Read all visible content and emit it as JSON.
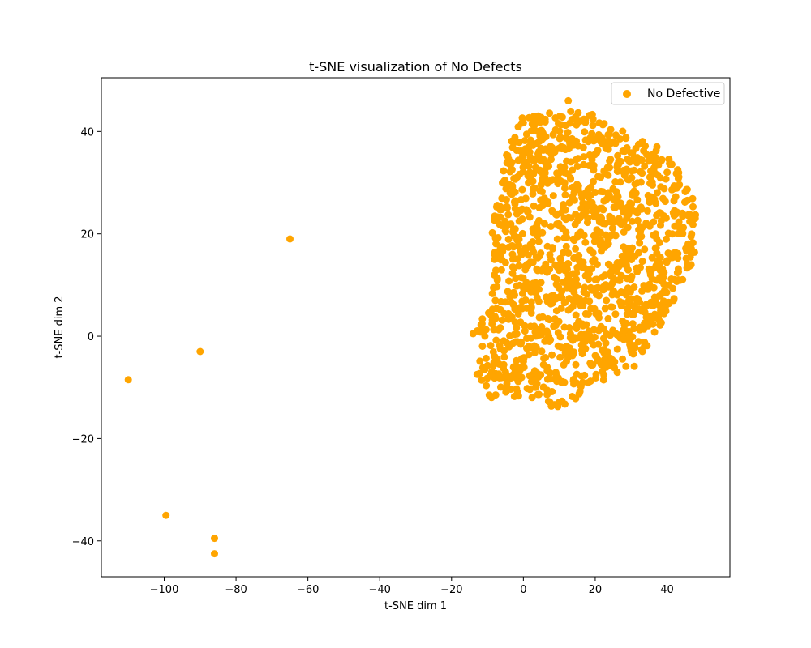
{
  "chart_data": {
    "type": "scatter",
    "title": "t-SNE visualization of No Defects",
    "xlabel": "t-SNE dim 1",
    "ylabel": "t-SNE dim 2",
    "xlim": [
      -117.5,
      57.5
    ],
    "ylim": [
      -47,
      50.5
    ],
    "xticks": [
      -100,
      -80,
      -60,
      -40,
      -20,
      0,
      20,
      40
    ],
    "yticks": [
      -40,
      -20,
      0,
      20,
      40
    ],
    "grid": false,
    "legend": {
      "position": "top-right",
      "entries": [
        "No Defective"
      ]
    },
    "series": [
      {
        "name": "No Defective",
        "color": "#FFA500",
        "outliers": [
          [
            -65,
            19
          ],
          [
            -90,
            -3
          ],
          [
            -110,
            -8.5
          ],
          [
            -99.5,
            -35
          ],
          [
            -86,
            -39.5
          ],
          [
            -86,
            -42.5
          ],
          [
            -14,
            0.5
          ],
          [
            12.5,
            46
          ]
        ],
        "cluster": {
          "x_range": [
            -13,
            49
          ],
          "y_range": [
            -15.5,
            45
          ],
          "approx_point_count": 1400,
          "outline": [
            [
              0,
              43
            ],
            [
              10,
              44
            ],
            [
              16,
              45
            ],
            [
              24,
              41
            ],
            [
              36,
              38
            ],
            [
              44,
              32
            ],
            [
              48,
              26
            ],
            [
              48,
              16
            ],
            [
              44,
              9
            ],
            [
              40,
              5
            ],
            [
              38,
              -1
            ],
            [
              30,
              -7
            ],
            [
              22,
              -9
            ],
            [
              16,
              -12
            ],
            [
              12,
              -15.5
            ],
            [
              6,
              -13
            ],
            [
              -2,
              -12
            ],
            [
              -10,
              -12
            ],
            [
              -13,
              -8
            ],
            [
              -13,
              2
            ],
            [
              -9,
              6
            ],
            [
              -8,
              14
            ],
            [
              -9,
              22
            ],
            [
              -7,
              30
            ],
            [
              -4,
              37
            ],
            [
              -2,
              41
            ]
          ]
        }
      }
    ]
  }
}
